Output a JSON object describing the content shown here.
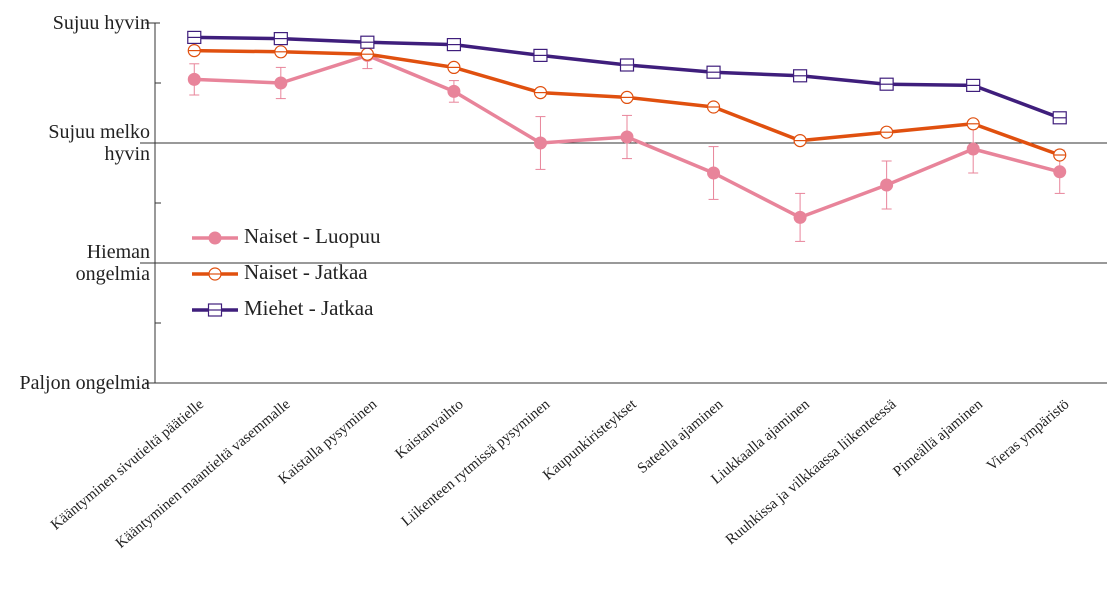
{
  "chart_data": {
    "type": "line",
    "categories": [
      "Kääntyminen sivutieltä päätielle",
      "Kääntyminen maantieltä vasemmalle",
      "Kaistalla pysyminen",
      "Kaistanvaihto",
      "Liikenteen rytmissä pysyminen",
      "Kaupunkiristeykset",
      "Sateella ajaminen",
      "Liukkaalla ajaminen",
      "Ruuhkissa ja vilkkaassa liikenteessä",
      "Pimeällä ajaminen",
      "Vieras ympäristö"
    ],
    "series": [
      {
        "name": "Naiset - Luopuu",
        "color": "#e8849a",
        "marker": "filled-circle",
        "values": [
          3.53,
          3.5,
          3.73,
          3.43,
          3.0,
          3.05,
          2.75,
          2.38,
          2.65,
          2.95,
          2.76
        ],
        "errors": [
          0.13,
          0.13,
          0.11,
          0.09,
          0.22,
          0.18,
          0.22,
          0.2,
          0.2,
          0.2,
          0.18
        ]
      },
      {
        "name": "Naiset - Jatkaa",
        "color": "#e0500f",
        "marker": "open-circle",
        "values": [
          3.77,
          3.76,
          3.74,
          3.63,
          3.42,
          3.38,
          3.3,
          3.02,
          3.09,
          3.16,
          2.9
        ]
      },
      {
        "name": "Miehet - Jatkaa",
        "color": "#3f1e7c",
        "marker": "open-square",
        "values": [
          3.88,
          3.87,
          3.84,
          3.82,
          3.73,
          3.65,
          3.59,
          3.56,
          3.49,
          3.48,
          3.21
        ]
      }
    ],
    "ylim": [
      1,
      4
    ],
    "yticks": [
      {
        "value": 1,
        "label": "Paljon ongelmia"
      },
      {
        "value": 2,
        "label": "Hieman ongelmia"
      },
      {
        "value": 3,
        "label": "Sujuu melko hyvin"
      },
      {
        "value": 4,
        "label": "Sujuu hyvin"
      }
    ],
    "minor_yticks": [
      1.5,
      2.5,
      3.5
    ],
    "grid": true,
    "legend": "left"
  }
}
